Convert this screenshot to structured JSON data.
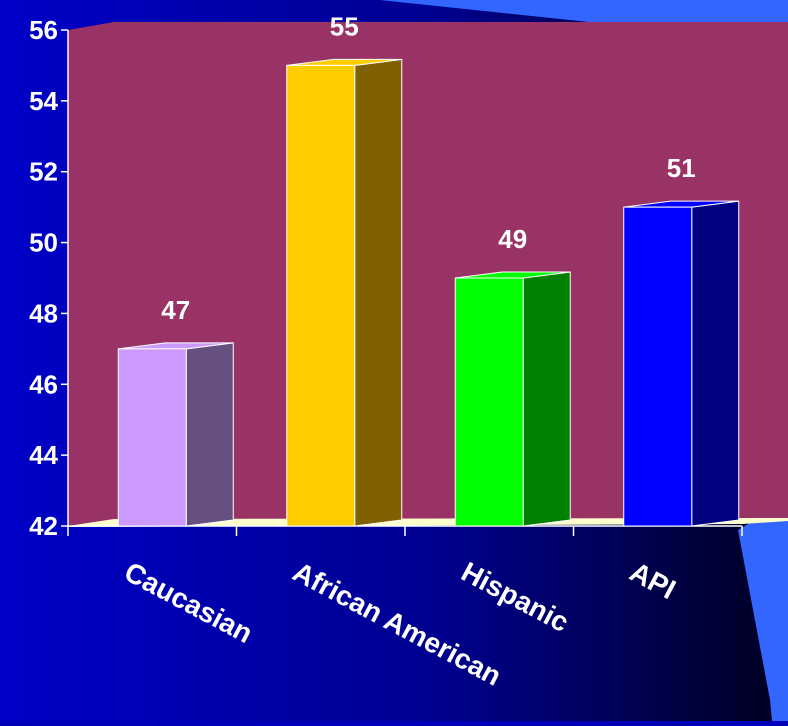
{
  "chart_data": {
    "type": "bar",
    "categories": [
      "Caucasian",
      "African American",
      "Hispanic",
      "API"
    ],
    "values": [
      47,
      55,
      49,
      51
    ],
    "data_labels": [
      "47",
      "55",
      "49",
      "51"
    ],
    "yticks": [
      "42",
      "44",
      "46",
      "48",
      "50",
      "52",
      "54",
      "56"
    ],
    "ylim": [
      42,
      56
    ],
    "title": "",
    "xlabel": "",
    "ylabel": "",
    "grid": false,
    "legend": "none",
    "style": "3d",
    "colors": {
      "plot_wall": "#993366",
      "floor": "#ffffcc",
      "bar_front": [
        "#cc99ff",
        "#ffcc00",
        "#00ff00",
        "#0000ff"
      ],
      "bar_side": [
        "#665080",
        "#806000",
        "#008000",
        "#000080"
      ],
      "text": "#ffffff"
    }
  }
}
